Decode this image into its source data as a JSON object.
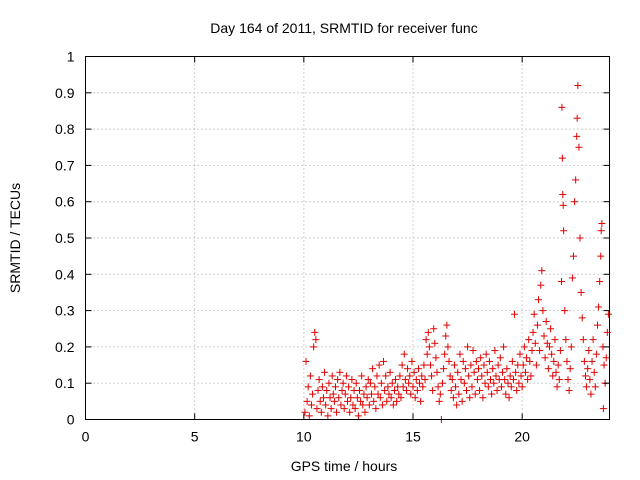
{
  "chart_data": {
    "type": "scatter",
    "title": "Day 164 of 2011, SRMTID for receiver func",
    "xlabel": "GPS time / hours",
    "ylabel": "SRMTID / TECUs",
    "xlim": [
      0,
      24
    ],
    "ylim": [
      0,
      1
    ],
    "xticks": [
      "0",
      "5",
      "10",
      "15",
      "20"
    ],
    "xtick_values": [
      0,
      5,
      10,
      15,
      20
    ],
    "yticks": [
      "0",
      "0.1",
      "0.2",
      "0.3",
      "0.4",
      "0.5",
      "0.6",
      "0.7",
      "0.8",
      "0.9",
      "1"
    ],
    "ytick_values": [
      0,
      0.1,
      0.2,
      0.3,
      0.4,
      0.5,
      0.6,
      0.7,
      0.8,
      0.9,
      1
    ],
    "grid": true,
    "marker": "plus",
    "color": "#e00000",
    "series": [
      {
        "points": [
          [
            10.05,
            0.02
          ],
          [
            10.1,
            0.16
          ],
          [
            10.15,
            0.05
          ],
          [
            10.2,
            0.09
          ],
          [
            10.25,
            0.01
          ],
          [
            10.3,
            0.12
          ],
          [
            10.35,
            0.04
          ],
          [
            10.4,
            0.07
          ],
          [
            10.45,
            0.2
          ],
          [
            10.5,
            0.24
          ],
          [
            10.55,
            0.22
          ],
          [
            10.6,
            0.03
          ],
          [
            10.65,
            0.08
          ],
          [
            10.7,
            0.11
          ],
          [
            10.75,
            0.05
          ],
          [
            10.8,
            0.02
          ],
          [
            10.85,
            0.09
          ],
          [
            10.9,
            0.06
          ],
          [
            10.95,
            0.13
          ],
          [
            11.0,
            0.04
          ],
          [
            11.05,
            0.08
          ],
          [
            11.1,
            0.01
          ],
          [
            11.15,
            0.1
          ],
          [
            11.2,
            0.06
          ],
          [
            11.25,
            0.03
          ],
          [
            11.3,
            0.12
          ],
          [
            11.35,
            0.07
          ],
          [
            11.4,
            0.05
          ],
          [
            11.45,
            0.09
          ],
          [
            11.5,
            0.02
          ],
          [
            11.55,
            0.11
          ],
          [
            11.6,
            0.06
          ],
          [
            11.65,
            0.13
          ],
          [
            11.7,
            0.04
          ],
          [
            11.75,
            0.08
          ],
          [
            11.8,
            0.1
          ],
          [
            11.85,
            0.03
          ],
          [
            11.9,
            0.07
          ],
          [
            11.95,
            0.12
          ],
          [
            12.0,
            0.05
          ],
          [
            12.05,
            0.09
          ],
          [
            12.1,
            0.02
          ],
          [
            12.15,
            0.06
          ],
          [
            12.2,
            0.11
          ],
          [
            12.25,
            0.04
          ],
          [
            12.3,
            0.08
          ],
          [
            12.35,
            0.03
          ],
          [
            12.4,
            0.1
          ],
          [
            12.45,
            0.06
          ],
          [
            12.5,
            0.01
          ],
          [
            12.55,
            0.08
          ],
          [
            12.6,
            0.05
          ],
          [
            12.65,
            0.12
          ],
          [
            12.7,
            0.04
          ],
          [
            12.75,
            0.07
          ],
          [
            12.8,
            0.02
          ],
          [
            12.85,
            0.09
          ],
          [
            12.9,
            0.06
          ],
          [
            12.95,
            0.11
          ],
          [
            13.0,
            0.04
          ],
          [
            13.05,
            0.1
          ],
          [
            13.1,
            0.07
          ],
          [
            13.15,
            0.14
          ],
          [
            13.2,
            0.05
          ],
          [
            13.25,
            0.09
          ],
          [
            13.3,
            0.03
          ],
          [
            13.35,
            0.12
          ],
          [
            13.4,
            0.07
          ],
          [
            13.45,
            0.15
          ],
          [
            13.5,
            0.06
          ],
          [
            13.55,
            0.1
          ],
          [
            13.6,
            0.04
          ],
          [
            13.65,
            0.16
          ],
          [
            13.7,
            0.08
          ],
          [
            13.75,
            0.12
          ],
          [
            13.8,
            0.05
          ],
          [
            13.85,
            0.09
          ],
          [
            13.9,
            0.07
          ],
          [
            13.95,
            0.13
          ],
          [
            14.0,
            0.06
          ],
          [
            14.05,
            0.1
          ],
          [
            14.1,
            0.04
          ],
          [
            14.15,
            0.08
          ],
          [
            14.2,
            0.11
          ],
          [
            14.25,
            0.05
          ],
          [
            14.3,
            0.09
          ],
          [
            14.35,
            0.07
          ],
          [
            14.4,
            0.12
          ],
          [
            14.45,
            0.06
          ],
          [
            14.5,
            0.15
          ],
          [
            14.55,
            0.09
          ],
          [
            14.6,
            0.18
          ],
          [
            14.65,
            0.11
          ],
          [
            14.7,
            0.08
          ],
          [
            14.75,
            0.14
          ],
          [
            14.8,
            0.1
          ],
          [
            14.85,
            0.12
          ],
          [
            14.9,
            0.07
          ],
          [
            14.95,
            0.16
          ],
          [
            15.0,
            0.09
          ],
          [
            15.05,
            0.13
          ],
          [
            15.1,
            0.06
          ],
          [
            15.15,
            0.11
          ],
          [
            15.2,
            0.08
          ],
          [
            15.25,
            0.14
          ],
          [
            15.3,
            0.1
          ],
          [
            15.35,
            0.05
          ],
          [
            15.4,
            0.12
          ],
          [
            15.45,
            0.09
          ],
          [
            15.5,
            0.15
          ],
          [
            15.55,
            0.11
          ],
          [
            15.6,
            0.22
          ],
          [
            15.65,
            0.18
          ],
          [
            15.7,
            0.24
          ],
          [
            15.75,
            0.2
          ],
          [
            15.8,
            0.15
          ],
          [
            15.85,
            0.12
          ],
          [
            15.9,
            0.08
          ],
          [
            15.95,
            0.25
          ],
          [
            16.0,
            0.21
          ],
          [
            16.05,
            0.17
          ],
          [
            16.1,
            0.13
          ],
          [
            16.15,
            0.09
          ],
          [
            16.2,
            0.05
          ],
          [
            16.25,
            0.07
          ],
          [
            16.3,
            0.0
          ],
          [
            16.35,
            0.1
          ],
          [
            16.4,
            0.14
          ],
          [
            16.45,
            0.18
          ],
          [
            16.5,
            0.23
          ],
          [
            16.55,
            0.26
          ],
          [
            16.6,
            0.2
          ],
          [
            16.65,
            0.16
          ],
          [
            16.7,
            0.12
          ],
          [
            16.75,
            0.08
          ],
          [
            16.8,
            0.11
          ],
          [
            16.85,
            0.06
          ],
          [
            16.9,
            0.15
          ],
          [
            16.95,
            0.09
          ],
          [
            17.0,
            0.04
          ],
          [
            17.05,
            0.13
          ],
          [
            17.1,
            0.07
          ],
          [
            17.15,
            0.18
          ],
          [
            17.2,
            0.11
          ],
          [
            17.25,
            0.05
          ],
          [
            17.3,
            0.16
          ],
          [
            17.35,
            0.1
          ],
          [
            17.4,
            0.14
          ],
          [
            17.45,
            0.08
          ],
          [
            17.5,
            0.2
          ],
          [
            17.55,
            0.12
          ],
          [
            17.6,
            0.06
          ],
          [
            17.65,
            0.15
          ],
          [
            17.7,
            0.09
          ],
          [
            17.75,
            0.19
          ],
          [
            17.8,
            0.13
          ],
          [
            17.85,
            0.07
          ],
          [
            17.9,
            0.16
          ],
          [
            17.95,
            0.11
          ],
          [
            18.0,
            0.14
          ],
          [
            18.05,
            0.08
          ],
          [
            18.1,
            0.17
          ],
          [
            18.15,
            0.12
          ],
          [
            18.2,
            0.06
          ],
          [
            18.25,
            0.15
          ],
          [
            18.3,
            0.1
          ],
          [
            18.35,
            0.18
          ],
          [
            18.4,
            0.13
          ],
          [
            18.45,
            0.09
          ],
          [
            18.5,
            0.16
          ],
          [
            18.55,
            0.11
          ],
          [
            18.6,
            0.07
          ],
          [
            18.65,
            0.14
          ],
          [
            18.7,
            0.1
          ],
          [
            18.75,
            0.19
          ],
          [
            18.8,
            0.12
          ],
          [
            18.85,
            0.08
          ],
          [
            18.9,
            0.15
          ],
          [
            18.95,
            0.11
          ],
          [
            19.0,
            0.17
          ],
          [
            19.05,
            0.09
          ],
          [
            19.1,
            0.13
          ],
          [
            19.15,
            0.2
          ],
          [
            19.2,
            0.11
          ],
          [
            19.25,
            0.07
          ],
          [
            19.3,
            0.14
          ],
          [
            19.35,
            0.1
          ],
          [
            19.4,
            0.06
          ],
          [
            19.45,
            0.12
          ],
          [
            19.5,
            0.09
          ],
          [
            19.55,
            0.16
          ],
          [
            19.6,
            0.11
          ],
          [
            19.65,
            0.29
          ],
          [
            19.7,
            0.13
          ],
          [
            19.75,
            0.08
          ],
          [
            19.8,
            0.15
          ],
          [
            19.85,
            0.1
          ],
          [
            19.9,
            0.18
          ],
          [
            19.95,
            0.12
          ],
          [
            20.0,
            0.09
          ],
          [
            20.05,
            0.15
          ],
          [
            20.1,
            0.2
          ],
          [
            20.15,
            0.13
          ],
          [
            20.2,
            0.17
          ],
          [
            20.25,
            0.11
          ],
          [
            20.3,
            0.22
          ],
          [
            20.35,
            0.16
          ],
          [
            20.4,
            0.12
          ],
          [
            20.45,
            0.19
          ],
          [
            20.5,
            0.24
          ],
          [
            20.55,
            0.29
          ],
          [
            20.6,
            0.21
          ],
          [
            20.65,
            0.15
          ],
          [
            20.7,
            0.26
          ],
          [
            20.75,
            0.33
          ],
          [
            20.8,
            0.19
          ],
          [
            20.85,
            0.37
          ],
          [
            20.9,
            0.41
          ],
          [
            20.95,
            0.3
          ],
          [
            21.0,
            0.23
          ],
          [
            21.05,
            0.17
          ],
          [
            21.1,
            0.27
          ],
          [
            21.15,
            0.21
          ],
          [
            21.2,
            0.14
          ],
          [
            21.25,
            0.2
          ],
          [
            21.3,
            0.25
          ],
          [
            21.35,
            0.18
          ],
          [
            21.4,
            0.12
          ],
          [
            21.45,
            0.16
          ],
          [
            21.5,
            0.22
          ],
          [
            21.55,
            0.13
          ],
          [
            21.6,
            0.09
          ],
          [
            21.65,
            0.15
          ],
          [
            21.7,
            0.11
          ],
          [
            21.75,
            0.19
          ],
          [
            21.8,
            0.38
          ],
          [
            21.82,
            0.86
          ],
          [
            21.84,
            0.72
          ],
          [
            21.86,
            0.62
          ],
          [
            21.88,
            0.59
          ],
          [
            21.9,
            0.52
          ],
          [
            21.95,
            0.3
          ],
          [
            22.0,
            0.22
          ],
          [
            22.05,
            0.16
          ],
          [
            22.1,
            0.11
          ],
          [
            22.15,
            0.08
          ],
          [
            22.2,
            0.14
          ],
          [
            22.25,
            0.2
          ],
          [
            22.3,
            0.39
          ],
          [
            22.35,
            0.45
          ],
          [
            22.4,
            0.6
          ],
          [
            22.45,
            0.66
          ],
          [
            22.5,
            0.78
          ],
          [
            22.52,
            0.83
          ],
          [
            22.55,
            0.92
          ],
          [
            22.6,
            0.75
          ],
          [
            22.65,
            0.5
          ],
          [
            22.7,
            0.35
          ],
          [
            22.75,
            0.28
          ],
          [
            22.8,
            0.22
          ],
          [
            22.85,
            0.16
          ],
          [
            22.9,
            0.12
          ],
          [
            22.95,
            0.09
          ],
          [
            23.0,
            0.14
          ],
          [
            23.05,
            0.19
          ],
          [
            23.1,
            0.11
          ],
          [
            23.15,
            0.07
          ],
          [
            23.2,
            0.16
          ],
          [
            23.25,
            0.22
          ],
          [
            23.3,
            0.13
          ],
          [
            23.35,
            0.09
          ],
          [
            23.4,
            0.18
          ],
          [
            23.45,
            0.26
          ],
          [
            23.5,
            0.31
          ],
          [
            23.55,
            0.38
          ],
          [
            23.6,
            0.45
          ],
          [
            23.62,
            0.52
          ],
          [
            23.65,
            0.54
          ],
          [
            23.7,
            0.2
          ],
          [
            23.72,
            0.03
          ],
          [
            23.75,
            0.15
          ],
          [
            23.8,
            0.1
          ],
          [
            23.85,
            0.17
          ],
          [
            23.9,
            0.24
          ],
          [
            23.95,
            0.29
          ]
        ]
      }
    ]
  }
}
